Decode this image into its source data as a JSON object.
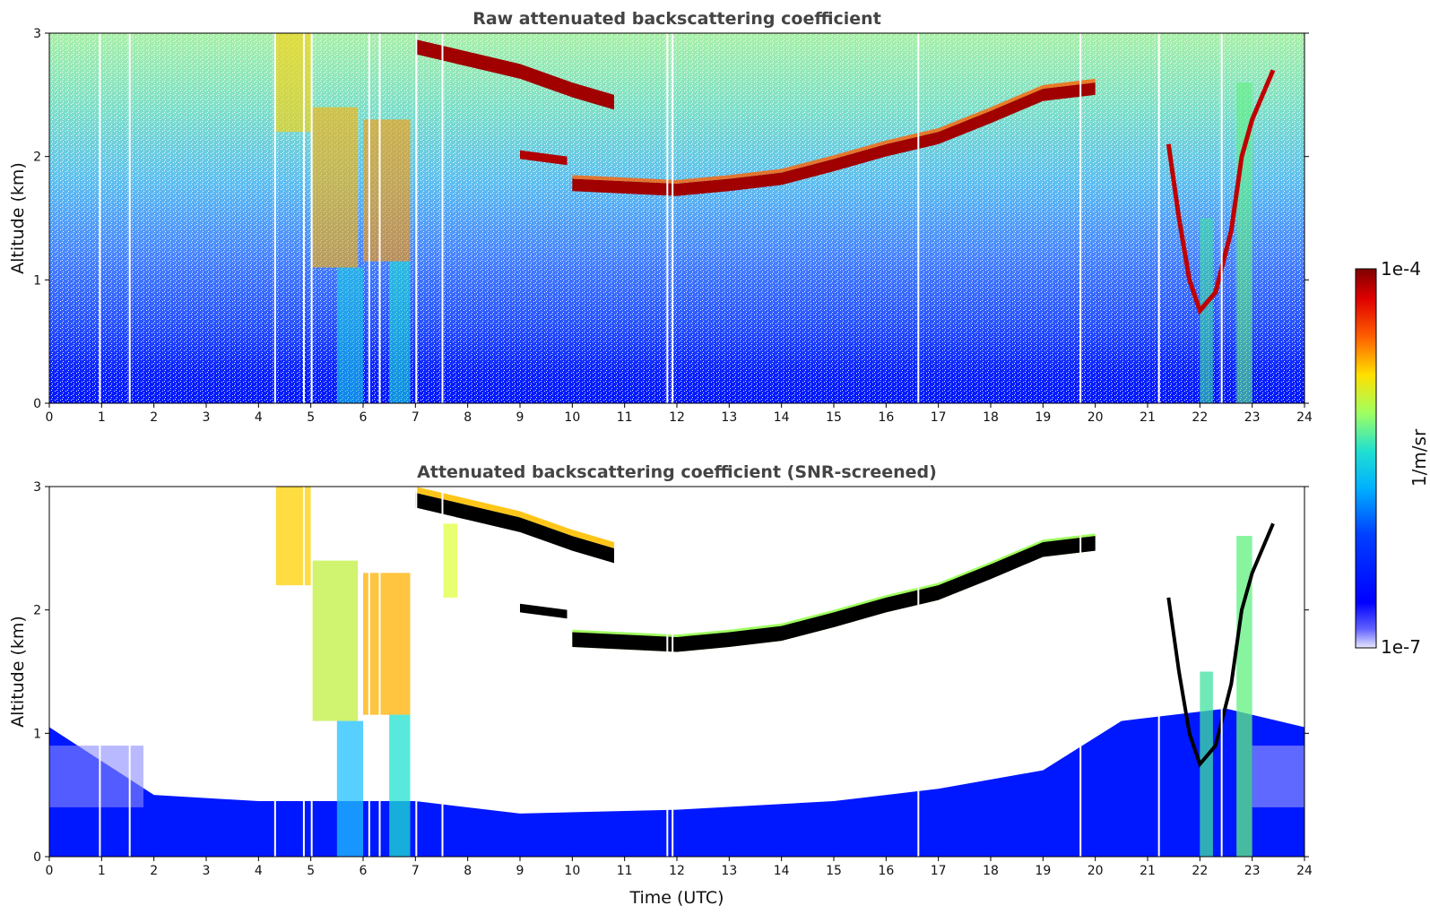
{
  "chart_data": [
    {
      "type": "heatmap",
      "title": "Raw attenuated backscattering coefficient",
      "xlabel": "",
      "ylabel": "Altitude (km)",
      "xlim": [
        0,
        24
      ],
      "ylim": [
        0,
        3
      ],
      "xticks": [
        "0",
        "1",
        "2",
        "3",
        "4",
        "5",
        "6",
        "7",
        "8",
        "9",
        "10",
        "11",
        "12",
        "13",
        "14",
        "15",
        "16",
        "17",
        "18",
        "19",
        "20",
        "21",
        "22",
        "23",
        "24"
      ],
      "yticks": [
        "0",
        "1",
        "2",
        "3"
      ],
      "cloud_layer_top_km": [
        {
          "x": 10.0,
          "y": 1.82
        },
        {
          "x": 12.0,
          "y": 1.78
        },
        {
          "x": 13.0,
          "y": 1.82
        },
        {
          "x": 14.0,
          "y": 1.87
        },
        {
          "x": 15.0,
          "y": 1.98
        },
        {
          "x": 16.0,
          "y": 2.1
        },
        {
          "x": 17.0,
          "y": 2.2
        },
        {
          "x": 18.0,
          "y": 2.37
        },
        {
          "x": 19.0,
          "y": 2.55
        },
        {
          "x": 20.0,
          "y": 2.6
        }
      ],
      "upper_cloud_km": [
        {
          "x": 7.0,
          "y": 2.95
        },
        {
          "x": 8.0,
          "y": 2.85
        },
        {
          "x": 9.0,
          "y": 2.75
        },
        {
          "x": 10.0,
          "y": 2.6
        },
        {
          "x": 10.8,
          "y": 2.5
        }
      ]
    },
    {
      "type": "heatmap",
      "title": "Attenuated backscattering coefficient (SNR-screened)",
      "xlabel": "Time (UTC)",
      "ylabel": "Altitude (km)",
      "xlim": [
        0,
        24
      ],
      "ylim": [
        0,
        3
      ],
      "xticks": [
        "0",
        "1",
        "2",
        "3",
        "4",
        "5",
        "6",
        "7",
        "8",
        "9",
        "10",
        "11",
        "12",
        "13",
        "14",
        "15",
        "16",
        "17",
        "18",
        "19",
        "20",
        "21",
        "22",
        "23",
        "24"
      ],
      "yticks": [
        "0",
        "1",
        "2",
        "3"
      ],
      "boundary_layer_top_km": [
        {
          "x": 0,
          "y": 1.05
        },
        {
          "x": 2.0,
          "y": 0.5
        },
        {
          "x": 4.0,
          "y": 0.45
        },
        {
          "x": 7.0,
          "y": 0.45
        },
        {
          "x": 9.0,
          "y": 0.35
        },
        {
          "x": 12.0,
          "y": 0.38
        },
        {
          "x": 15.0,
          "y": 0.45
        },
        {
          "x": 17.0,
          "y": 0.55
        },
        {
          "x": 19.0,
          "y": 0.7
        },
        {
          "x": 20.5,
          "y": 1.1
        },
        {
          "x": 22.5,
          "y": 1.2
        },
        {
          "x": 24,
          "y": 1.05
        }
      ]
    }
  ],
  "colorbar": {
    "label": "1/m/sr",
    "max_label": "1e-4",
    "min_label": "1e-7",
    "scale": "log",
    "range": [
      1e-07,
      0.0001
    ],
    "colormap": "jet",
    "colors": [
      "#e8e8ff",
      "#0000ff",
      "#00a0ff",
      "#20e0e0",
      "#a0ff60",
      "#ffe000",
      "#ff6000",
      "#e00000",
      "#800000"
    ]
  }
}
